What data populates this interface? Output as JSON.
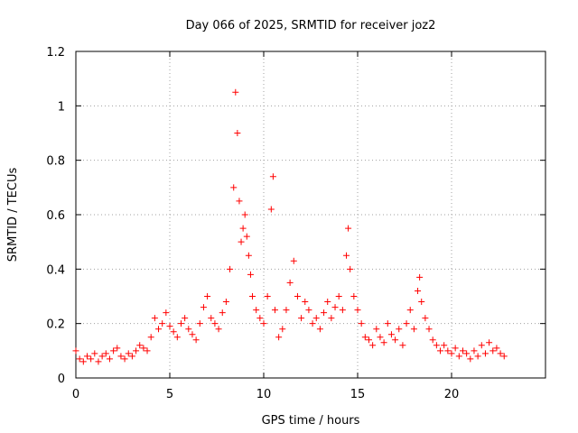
{
  "chart_data": {
    "type": "scatter",
    "title": "Day 066 of 2025, SRMTID for receiver joz2",
    "xlabel": "GPS time / hours",
    "ylabel": "SRMTID / TECUs",
    "xlim": [
      0,
      25
    ],
    "ylim": [
      0,
      1.2
    ],
    "x_ticks": [
      0,
      5,
      10,
      15,
      20
    ],
    "y_ticks": [
      0,
      0.2,
      0.4,
      0.6,
      0.8,
      1,
      1.2
    ],
    "x_tick_labels": [
      "0",
      "5",
      "10",
      "15",
      "20"
    ],
    "y_tick_labels": [
      "0",
      "0.2",
      "0.4",
      "0.6",
      "0.8",
      "1",
      "1.2"
    ],
    "grid": true,
    "marker": "+",
    "color": "#ff0000",
    "series": [
      {
        "name": "SRMTID",
        "x": [
          0.0,
          0.2,
          0.4,
          0.6,
          0.8,
          1.0,
          1.2,
          1.4,
          1.6,
          1.8,
          2.0,
          2.2,
          2.4,
          2.6,
          2.8,
          3.0,
          3.2,
          3.4,
          3.6,
          3.8,
          4.0,
          4.2,
          4.4,
          4.6,
          4.8,
          5.0,
          5.2,
          5.4,
          5.6,
          5.8,
          6.0,
          6.2,
          6.4,
          6.6,
          6.8,
          7.0,
          7.2,
          7.4,
          7.6,
          7.8,
          8.0,
          8.2,
          8.4,
          8.5,
          8.6,
          8.7,
          8.8,
          8.9,
          9.0,
          9.1,
          9.2,
          9.3,
          9.4,
          9.6,
          9.8,
          10.0,
          10.2,
          10.4,
          10.5,
          10.6,
          10.8,
          11.0,
          11.2,
          11.4,
          11.6,
          11.8,
          12.0,
          12.2,
          12.4,
          12.6,
          12.8,
          13.0,
          13.2,
          13.4,
          13.6,
          13.8,
          14.0,
          14.2,
          14.4,
          14.5,
          14.6,
          14.8,
          15.0,
          15.2,
          15.4,
          15.6,
          15.8,
          16.0,
          16.2,
          16.4,
          16.6,
          16.8,
          17.0,
          17.2,
          17.4,
          17.6,
          17.8,
          18.0,
          18.2,
          18.3,
          18.4,
          18.6,
          18.8,
          19.0,
          19.2,
          19.4,
          19.6,
          19.8,
          20.0,
          20.2,
          20.4,
          20.6,
          20.8,
          21.0,
          21.2,
          21.4,
          21.6,
          21.8,
          22.0,
          22.2,
          22.4,
          22.6,
          22.8
        ],
        "y": [
          0.1,
          0.07,
          0.06,
          0.08,
          0.07,
          0.09,
          0.06,
          0.08,
          0.09,
          0.07,
          0.1,
          0.11,
          0.08,
          0.07,
          0.09,
          0.08,
          0.1,
          0.12,
          0.11,
          0.1,
          0.15,
          0.22,
          0.18,
          0.2,
          0.24,
          0.19,
          0.17,
          0.15,
          0.2,
          0.22,
          0.18,
          0.16,
          0.14,
          0.2,
          0.26,
          0.3,
          0.22,
          0.2,
          0.18,
          0.24,
          0.28,
          0.4,
          0.7,
          1.05,
          0.9,
          0.65,
          0.5,
          0.55,
          0.6,
          0.52,
          0.45,
          0.38,
          0.3,
          0.25,
          0.22,
          0.2,
          0.3,
          0.62,
          0.74,
          0.25,
          0.15,
          0.18,
          0.25,
          0.35,
          0.43,
          0.3,
          0.22,
          0.28,
          0.25,
          0.2,
          0.22,
          0.18,
          0.24,
          0.28,
          0.22,
          0.26,
          0.3,
          0.25,
          0.45,
          0.55,
          0.4,
          0.3,
          0.25,
          0.2,
          0.15,
          0.14,
          0.12,
          0.18,
          0.15,
          0.13,
          0.2,
          0.16,
          0.14,
          0.18,
          0.12,
          0.2,
          0.25,
          0.18,
          0.32,
          0.37,
          0.28,
          0.22,
          0.18,
          0.14,
          0.12,
          0.1,
          0.12,
          0.1,
          0.09,
          0.11,
          0.08,
          0.1,
          0.09,
          0.07,
          0.1,
          0.08,
          0.12,
          0.09,
          0.13,
          0.1,
          0.11,
          0.09,
          0.08
        ]
      }
    ]
  }
}
